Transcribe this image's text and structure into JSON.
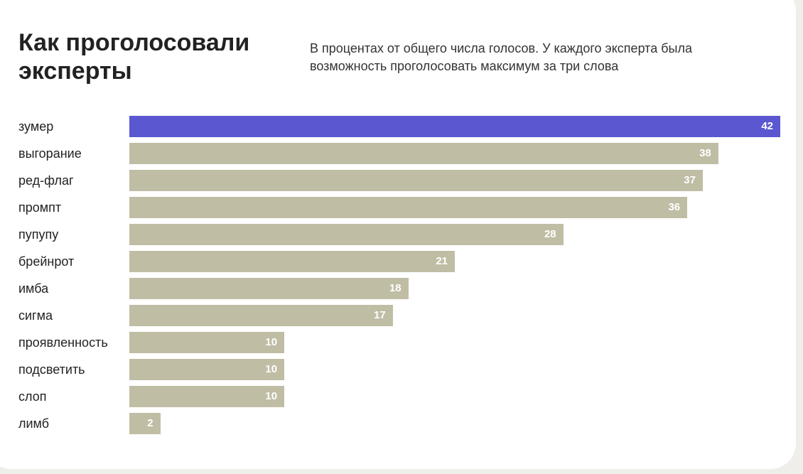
{
  "title": "Как проголосовали эксперты",
  "subtitle": "В процентах от общего числа голосов. У каждого эксперта была возможность проголосовать максимум за три слова",
  "chart_data": {
    "type": "bar",
    "orientation": "horizontal",
    "title": "Как проголосовали эксперты",
    "subtitle": "В процентах от общего числа голосов. У каждого эксперта была возможность проголосовать максимум за три слова",
    "categories": [
      "зумер",
      "выгорание",
      "ред-флаг",
      "промпт",
      "пупупу",
      "брейнрот",
      "имба",
      "сигма",
      "проявленность",
      "подсветить",
      "слоп",
      "лимб"
    ],
    "values": [
      42,
      38,
      37,
      36,
      28,
      21,
      18,
      17,
      10,
      10,
      10,
      2
    ],
    "xlabel": "",
    "ylabel": "",
    "xlim": [
      0,
      42
    ],
    "grid": false,
    "highlight_index": 0,
    "colors": {
      "highlight": "#5a57d1",
      "default": "#c0bda5",
      "label": "#ffffff"
    }
  }
}
